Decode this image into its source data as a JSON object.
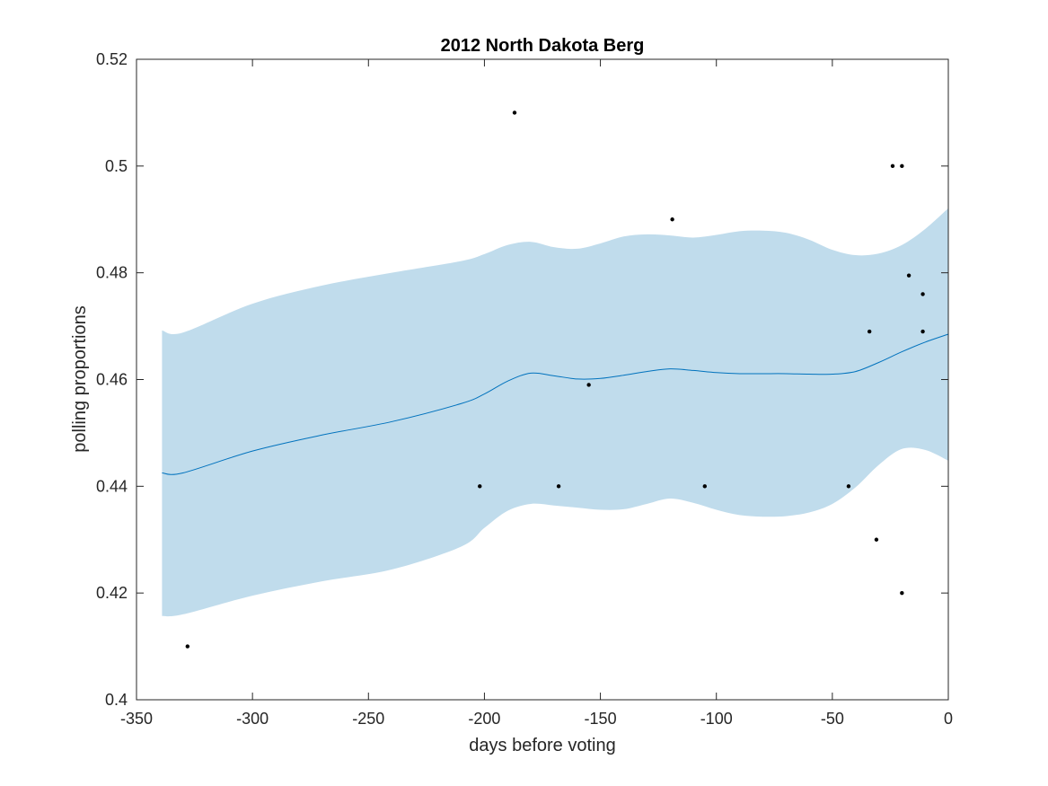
{
  "chart_data": {
    "type": "line",
    "title": "2012 North Dakota Berg",
    "xlabel": "days before voting",
    "ylabel": "polling proportions",
    "xlim": [
      -350,
      0
    ],
    "ylim": [
      0.4,
      0.52
    ],
    "xticks": [
      -350,
      -300,
      -250,
      -200,
      -150,
      -100,
      -50,
      0
    ],
    "xtick_labels": [
      "-350",
      "-300",
      "-250",
      "-200",
      "-150",
      "-100",
      "-50",
      "0"
    ],
    "yticks": [
      0.4,
      0.42,
      0.44,
      0.46,
      0.48,
      0.5,
      0.52
    ],
    "ytick_labels": [
      "0.4",
      "0.42",
      "0.44",
      "0.46",
      "0.48",
      "0.5",
      "0.52"
    ],
    "grid": false,
    "colors": {
      "band": "#c0dcec",
      "line": "#0072bd",
      "points": "#000000",
      "axes": "#262626"
    },
    "series": [
      {
        "type": "area-band",
        "x": [
          -339,
          -330,
          -300,
          -270,
          -240,
          -210,
          -200,
          -190,
          -180,
          -170,
          -160,
          -150,
          -140,
          -130,
          -120,
          -110,
          -100,
          -90,
          -80,
          -70,
          -60,
          -50,
          -40,
          -30,
          -20,
          -10,
          0
        ],
        "upper": [
          0.4692,
          0.4688,
          0.4742,
          0.4776,
          0.48,
          0.4822,
          0.4835,
          0.4852,
          0.4858,
          0.4848,
          0.4845,
          0.4855,
          0.4868,
          0.4872,
          0.487,
          0.4866,
          0.4871,
          0.4878,
          0.4879,
          0.4875,
          0.4862,
          0.4843,
          0.4833,
          0.4836,
          0.4852,
          0.4882,
          0.4921
        ],
        "lower": [
          0.4157,
          0.416,
          0.4195,
          0.4222,
          0.4244,
          0.4287,
          0.4322,
          0.4354,
          0.4367,
          0.4364,
          0.436,
          0.4356,
          0.4357,
          0.4367,
          0.4377,
          0.4369,
          0.4356,
          0.4346,
          0.4343,
          0.4344,
          0.4351,
          0.4367,
          0.4398,
          0.444,
          0.447,
          0.4468,
          0.4448
        ]
      },
      {
        "type": "line",
        "x": [
          -339,
          -330,
          -300,
          -270,
          -240,
          -210,
          -200,
          -190,
          -180,
          -170,
          -160,
          -150,
          -140,
          -130,
          -120,
          -110,
          -100,
          -90,
          -80,
          -70,
          -60,
          -50,
          -40,
          -30,
          -20,
          -10,
          0
        ],
        "y": [
          0.4425,
          0.4425,
          0.4466,
          0.4496,
          0.4521,
          0.4555,
          0.4573,
          0.4597,
          0.4612,
          0.4607,
          0.4601,
          0.4602,
          0.4608,
          0.4615,
          0.462,
          0.4617,
          0.4613,
          0.4611,
          0.4611,
          0.4611,
          0.461,
          0.461,
          0.4615,
          0.4632,
          0.4652,
          0.467,
          0.4685
        ]
      },
      {
        "type": "scatter",
        "x": [
          -328,
          -202,
          -187,
          -168,
          -155,
          -119,
          -105,
          -43,
          -34,
          -31,
          -24,
          -20,
          -20,
          -17,
          -11,
          -11
        ],
        "y": [
          0.41,
          0.44,
          0.51,
          0.44,
          0.459,
          0.49,
          0.44,
          0.44,
          0.469,
          0.43,
          0.5,
          0.5,
          0.42,
          0.4795,
          0.476,
          0.469
        ]
      }
    ]
  }
}
